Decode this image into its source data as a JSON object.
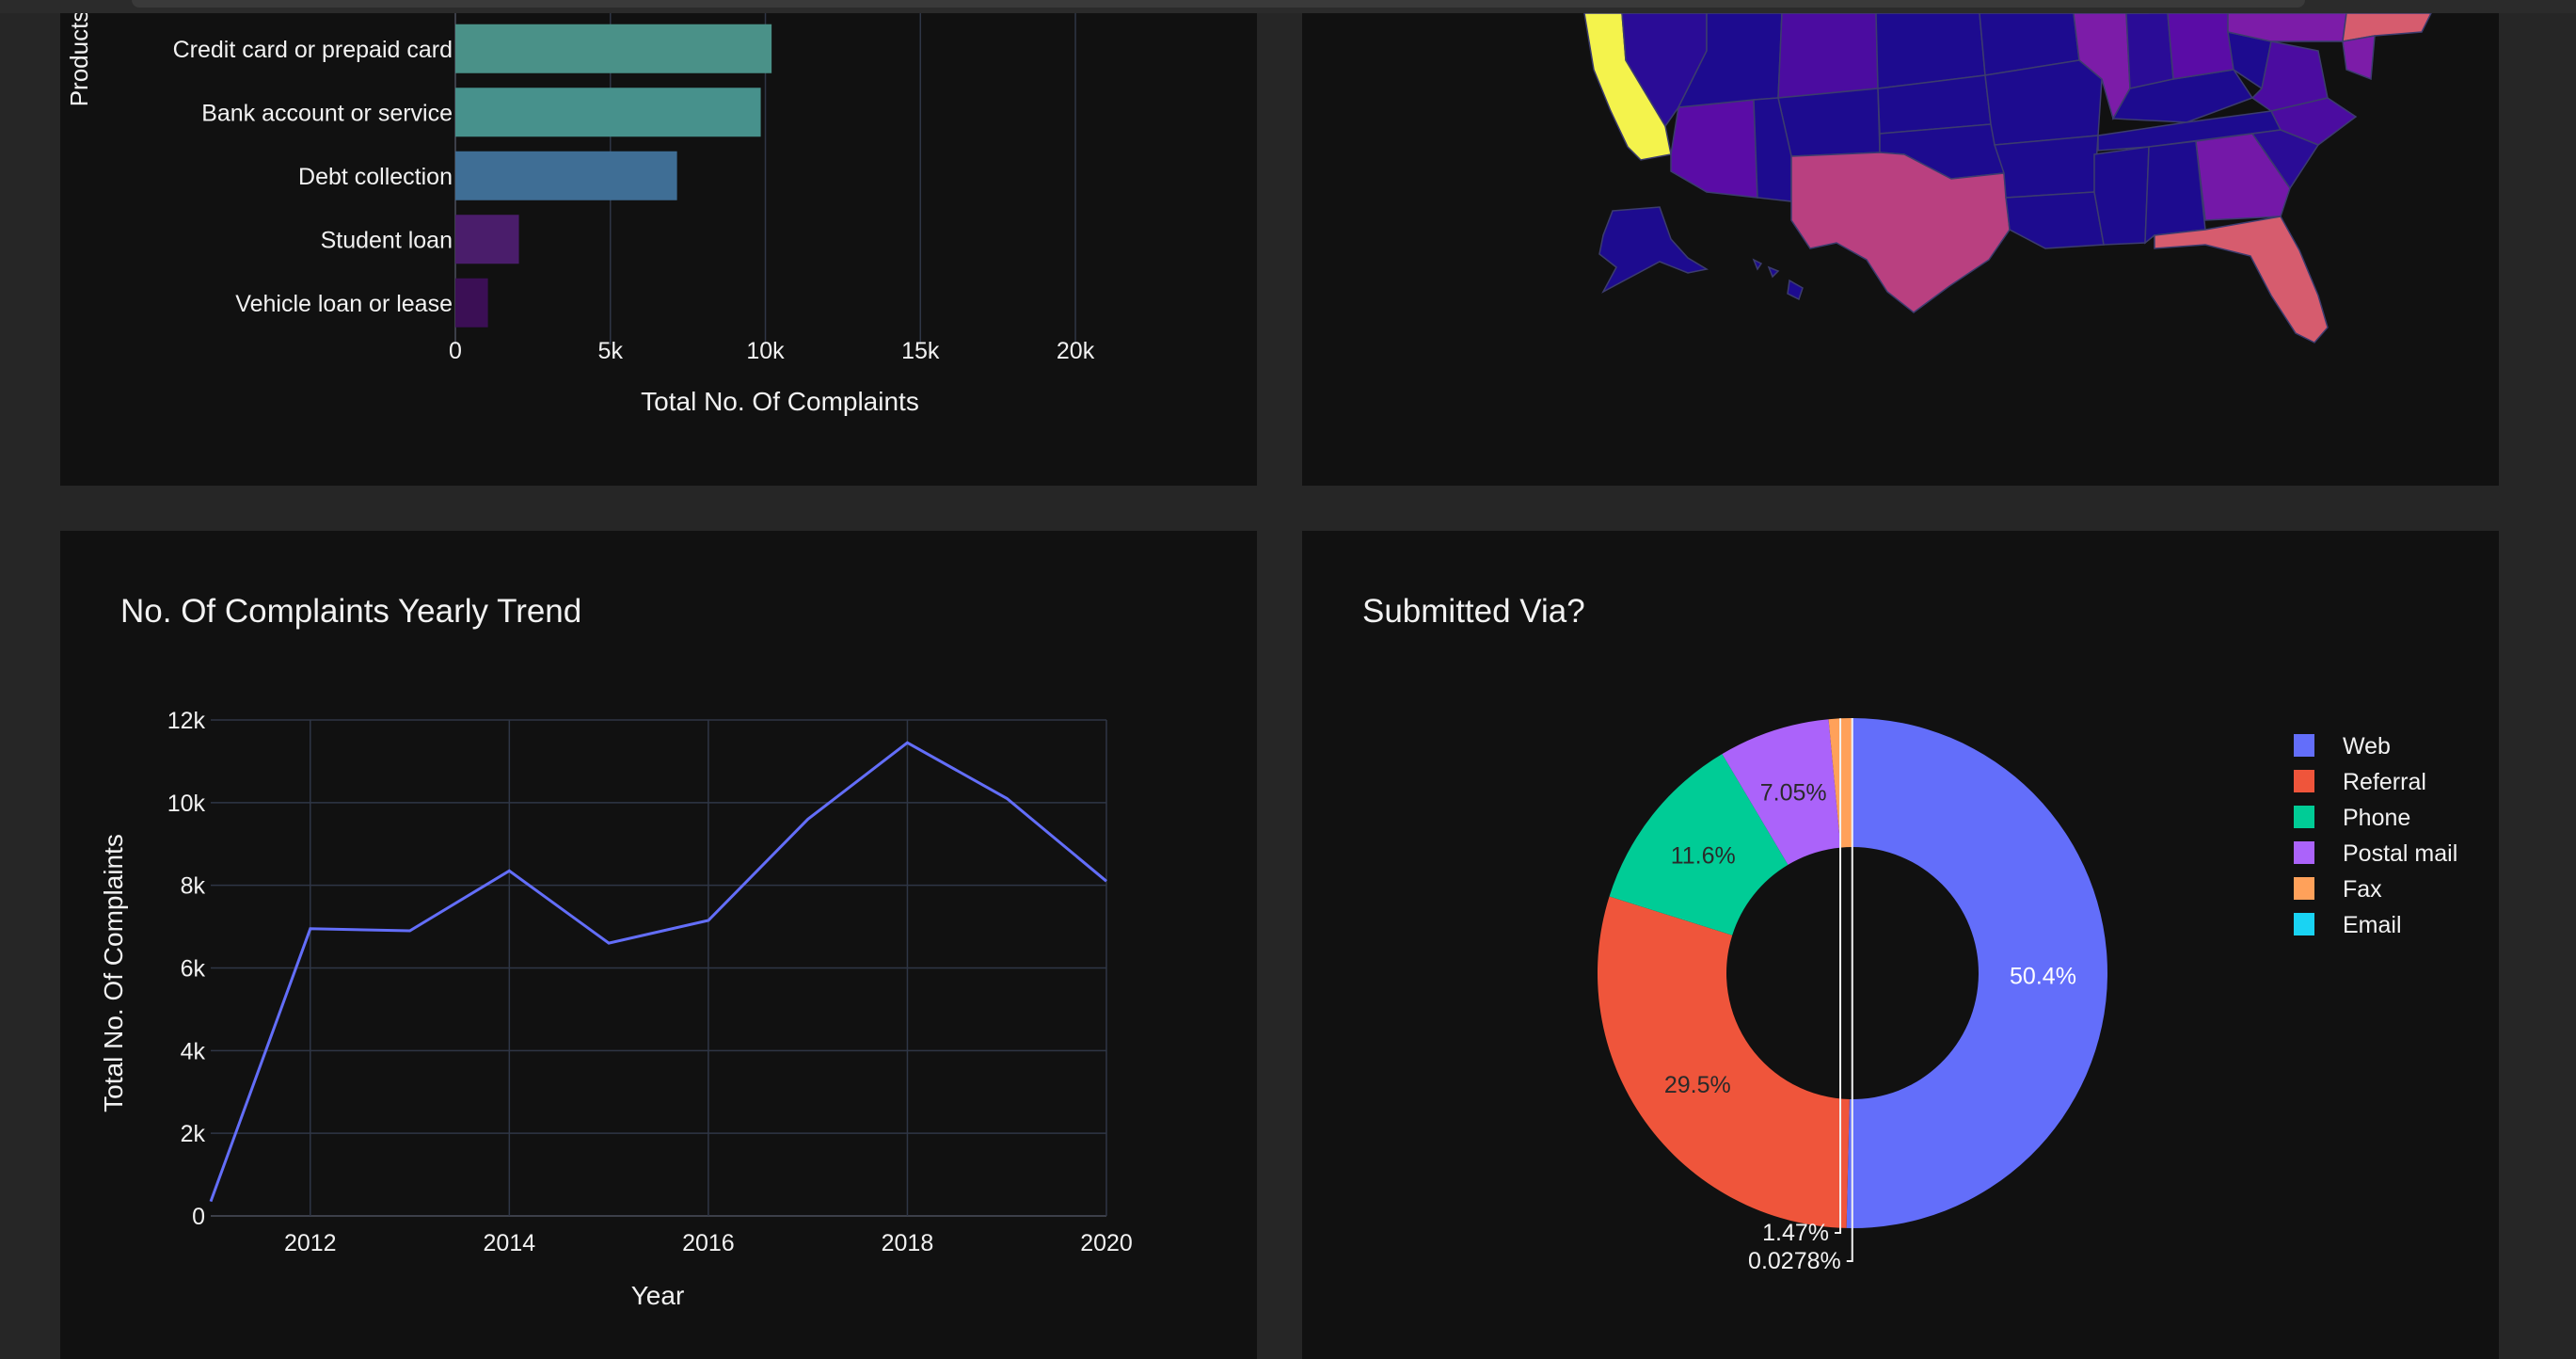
{
  "colors": {
    "page_bg": "#262626",
    "panel_bg": "#111111",
    "grid": "#2f3646",
    "text": "#f2f2f2",
    "line_series": "#636efa"
  },
  "products_chart": {
    "ylabel": "Products",
    "xlabel": "Total No. Of Complaints",
    "categories": [
      "Credit card or prepaid card",
      "Bank account or service",
      "Debt collection",
      "Student loan",
      "Vehicle loan or lease"
    ],
    "values": [
      10200,
      9850,
      7150,
      2050,
      1050
    ],
    "bar_colors": [
      "#4a9188",
      "#47918c",
      "#3f6e95",
      "#4a1d6b",
      "#3b0f55"
    ],
    "x_ticks": [
      "0",
      "5k",
      "10k",
      "15k",
      "20k"
    ],
    "x_tick_values": [
      0,
      5000,
      10000,
      15000,
      20000
    ]
  },
  "map_chart": {
    "state_colors": {
      "california": "#f4f34c",
      "texas": "#b94080",
      "florida": "#d65c6e",
      "georgia": "#7418a8",
      "illinois": "#7c1ca8",
      "low": "#1d0b8f",
      "mid": "#4b0ca0"
    }
  },
  "trend_chart": {
    "title": "No. Of Complaints Yearly Trend",
    "xlabel": "Year",
    "ylabel": "Total No. Of Complaints",
    "y_ticks": [
      "0",
      "2k",
      "4k",
      "6k",
      "8k",
      "10k",
      "12k"
    ],
    "y_tick_values": [
      0,
      2000,
      4000,
      6000,
      8000,
      10000,
      12000
    ],
    "x_ticks": [
      "2012",
      "2014",
      "2016",
      "2018",
      "2020"
    ],
    "x_tick_values": [
      2012,
      2014,
      2016,
      2018,
      2020
    ]
  },
  "pie_chart": {
    "title": "Submitted Via?",
    "labels": [
      "Web",
      "Referral",
      "Phone",
      "Postal mail",
      "Fax",
      "Email"
    ],
    "percent_labels": [
      "50.4%",
      "29.5%",
      "11.6%",
      "7.05%",
      "1.47%",
      "0.0278%"
    ],
    "values": [
      50.4,
      29.5,
      11.6,
      7.05,
      1.47,
      0.0278
    ],
    "colors": [
      "#636efa",
      "#ef553b",
      "#00cc96",
      "#ab63fa",
      "#ffa15a",
      "#19d3f3"
    ]
  },
  "chart_data": [
    {
      "type": "bar",
      "orientation": "horizontal",
      "categories": [
        "Credit card or prepaid card",
        "Bank account or service",
        "Debt collection",
        "Student loan",
        "Vehicle loan or lease"
      ],
      "values": [
        10200,
        9850,
        7150,
        2050,
        1050
      ],
      "xlabel": "Total No. Of Complaints",
      "ylabel": "Products",
      "xlim": [
        0,
        21000
      ],
      "grid": true
    },
    {
      "type": "line",
      "title": "No. Of Complaints Yearly Trend",
      "xlabel": "Year",
      "ylabel": "Total No. Of Complaints",
      "x": [
        2011,
        2012,
        2013,
        2014,
        2015,
        2016,
        2017,
        2018,
        2019,
        2020
      ],
      "series": [
        {
          "values": [
            350,
            6950,
            6900,
            8350,
            6600,
            7150,
            9600,
            11450,
            10100,
            8100
          ]
        }
      ],
      "xlim": [
        2011,
        2020
      ],
      "ylim": [
        0,
        12000
      ],
      "grid": true
    },
    {
      "type": "pie",
      "title": "Submitted Via?",
      "hole": true,
      "labels": [
        "Web",
        "Referral",
        "Phone",
        "Postal mail",
        "Fax",
        "Email"
      ],
      "values": [
        50.4,
        29.5,
        11.6,
        7.05,
        1.47,
        0.0278
      ],
      "legend": "right"
    }
  ]
}
